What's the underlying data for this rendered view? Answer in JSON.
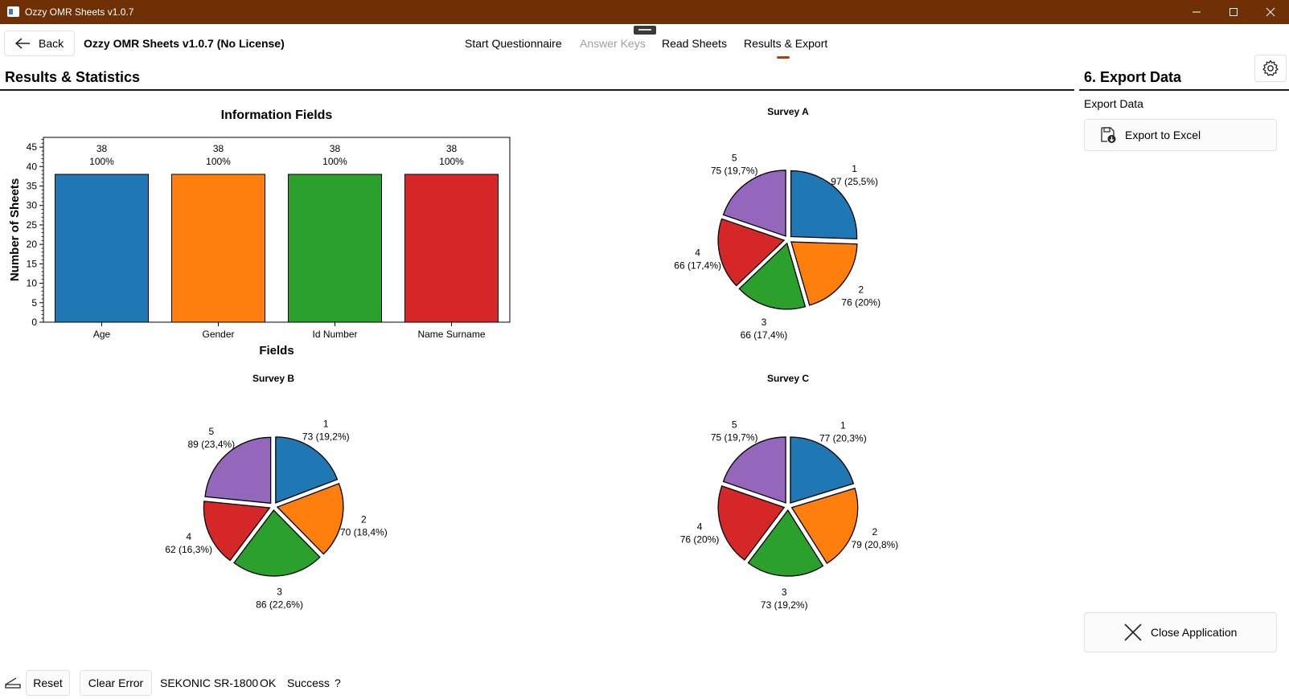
{
  "window": {
    "title": "Ozzy OMR Sheets v1.0.7"
  },
  "toolbar": {
    "back_label": "Back",
    "app_heading": "Ozzy OMR Sheets v1.0.7 (No License)",
    "nav": [
      {
        "label": "Start Questionnaire",
        "disabled": false
      },
      {
        "label": "Answer Keys",
        "disabled": true
      },
      {
        "label": "Read Sheets",
        "disabled": false
      },
      {
        "label": "Results & Export",
        "disabled": false,
        "active": true
      }
    ]
  },
  "results": {
    "title": "Results & Statistics"
  },
  "export_panel": {
    "title": "6. Export Data",
    "label": "Export Data",
    "export_button": "Export to Excel",
    "close_button": "Close Application"
  },
  "statusbar": {
    "reset": "Reset",
    "clear_error": "Clear Error",
    "device": "SEKONIC SR-1800",
    "state": "OK",
    "result": "Success",
    "help": "?"
  },
  "colors": {
    "titlebar": "#6f3006",
    "accent": "#a5410f",
    "series": [
      "#1f77b4",
      "#ff7f0e",
      "#2ca02c",
      "#d62728",
      "#9467bd"
    ]
  },
  "chart_data": [
    {
      "type": "bar",
      "title": "Information Fields",
      "xlabel": "Fields",
      "ylabel": "Number of Sheets",
      "categories": [
        "Age",
        "Gender",
        "Id Number",
        "Name Surname"
      ],
      "values": [
        38,
        38,
        38,
        38
      ],
      "value_labels": [
        "38",
        "38",
        "38",
        "38"
      ],
      "percent_labels": [
        "100%",
        "100%",
        "100%",
        "100%"
      ],
      "yticks": [
        "0",
        "5",
        "10",
        "15",
        "20",
        "25",
        "30",
        "35",
        "40",
        "45"
      ],
      "ylim": [
        0,
        47.5
      ]
    },
    {
      "type": "pie",
      "title": "Survey A",
      "labels": [
        "1",
        "2",
        "3",
        "4",
        "5"
      ],
      "values": [
        97,
        76,
        66,
        66,
        75
      ],
      "value_labels": [
        "97 (25,5%)",
        "76 (20%)",
        "66 (17,4%)",
        "66 (17,4%)",
        "75 (19,7%)"
      ]
    },
    {
      "type": "pie",
      "title": "Survey B",
      "labels": [
        "1",
        "2",
        "3",
        "4",
        "5"
      ],
      "values": [
        73,
        70,
        86,
        62,
        89
      ],
      "value_labels": [
        "73 (19,2%)",
        "70 (18,4%)",
        "86 (22,6%)",
        "62 (16,3%)",
        "89 (23,4%)"
      ]
    },
    {
      "type": "pie",
      "title": "Survey C",
      "labels": [
        "1",
        "2",
        "3",
        "4",
        "5"
      ],
      "values": [
        77,
        79,
        73,
        76,
        75
      ],
      "value_labels": [
        "77 (20,3%)",
        "79 (20,8%)",
        "73 (19,2%)",
        "76 (20%)",
        "75 (19,7%)"
      ]
    }
  ]
}
